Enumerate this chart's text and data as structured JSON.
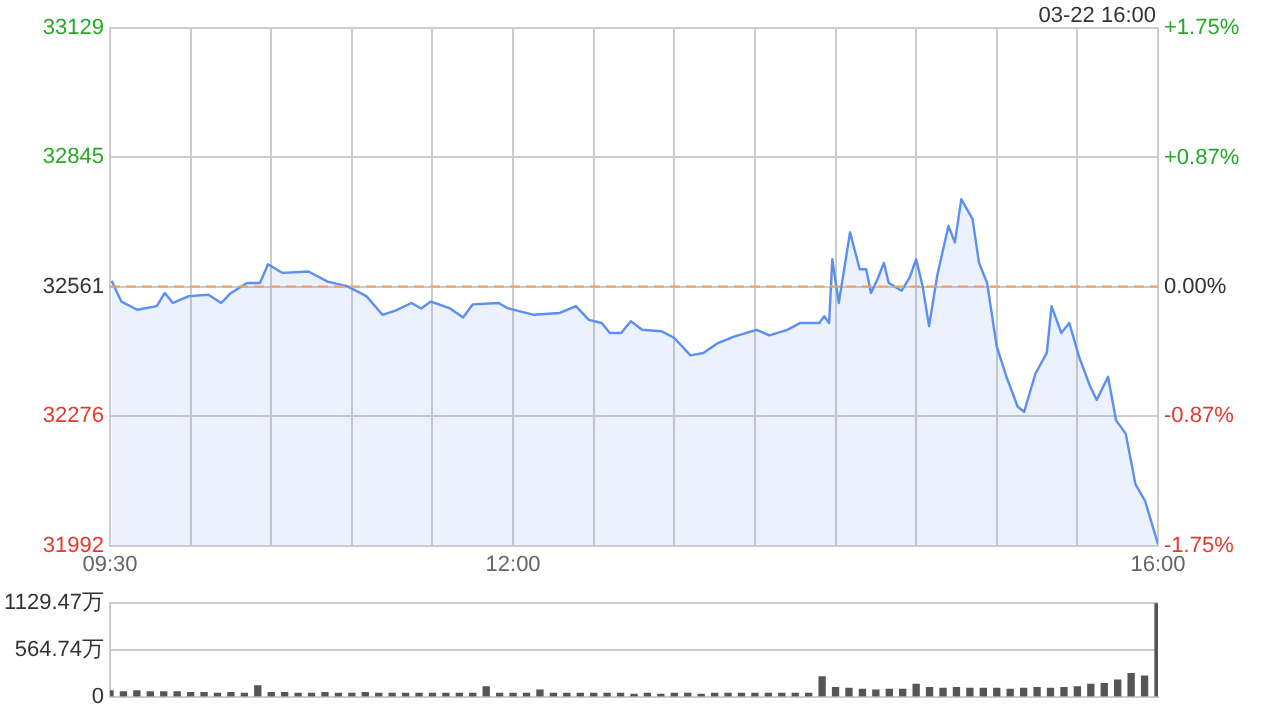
{
  "chart_data": [
    {
      "type": "area",
      "annotations": [
        "03-22 16:00"
      ],
      "series": [
        {
          "color": "#5b8ff0",
          "x": [
            9.51,
            9.57,
            9.67,
            9.79,
            9.84,
            9.89,
            9.99,
            10.11,
            10.19,
            10.25,
            10.35,
            10.43,
            10.48,
            10.57,
            10.73,
            10.85,
            10.97,
            11.09,
            11.19,
            11.27,
            11.37,
            11.43,
            11.49,
            11.61,
            11.69,
            11.75,
            11.91,
            11.97,
            12.13,
            12.29,
            12.39,
            12.47,
            12.55,
            12.6,
            12.67,
            12.73,
            12.8,
            12.92,
            13.0,
            13.1,
            13.18,
            13.27,
            13.37,
            13.51,
            13.59,
            13.7,
            13.78,
            13.9,
            13.93,
            13.96,
            13.98,
            14.02,
            14.09,
            14.15,
            14.19,
            14.22,
            14.26,
            14.3,
            14.33,
            14.41,
            14.46,
            14.5,
            14.54,
            14.58,
            14.63,
            14.7,
            14.74,
            14.78,
            14.85,
            14.89,
            14.94,
            15.0,
            15.06,
            15.13,
            15.17,
            15.24,
            15.31,
            15.34,
            15.4,
            15.45,
            15.51,
            15.58,
            15.62,
            15.69,
            15.74,
            15.8,
            15.86,
            15.92,
            16.0
          ],
          "values": [
            32574,
            32528,
            32510,
            32518,
            32547,
            32525,
            32540,
            32543,
            32525,
            32547,
            32569,
            32569,
            32610,
            32591,
            32594,
            32572,
            32562,
            32540,
            32499,
            32508,
            32525,
            32513,
            32528,
            32513,
            32493,
            32522,
            32525,
            32513,
            32499,
            32503,
            32518,
            32488,
            32481,
            32459,
            32459,
            32485,
            32466,
            32463,
            32448,
            32410,
            32415,
            32437,
            32451,
            32466,
            32454,
            32466,
            32481,
            32481,
            32496,
            32481,
            32621,
            32525,
            32680,
            32599,
            32599,
            32547,
            32577,
            32613,
            32569,
            32552,
            32581,
            32621,
            32562,
            32474,
            32584,
            32694,
            32658,
            32753,
            32709,
            32613,
            32569,
            32429,
            32363,
            32297,
            32286,
            32370,
            32415,
            32518,
            32459,
            32481,
            32407,
            32341,
            32312,
            32363,
            32267,
            32238,
            32127,
            32090,
            31995
          ]
        }
      ],
      "xlim": [
        9.5,
        16
      ],
      "xticks": [
        {
          "value": 9.5,
          "label": "09:30"
        },
        {
          "value": 10,
          "label": null
        },
        {
          "value": 10.5,
          "label": null
        },
        {
          "value": 11,
          "label": null
        },
        {
          "value": 11.5,
          "label": null
        },
        {
          "value": 12,
          "label": "12:00"
        },
        {
          "value": 12.5,
          "label": null
        },
        {
          "value": 13,
          "label": null
        },
        {
          "value": 13.5,
          "label": null
        },
        {
          "value": 14,
          "label": null
        },
        {
          "value": 14.5,
          "label": null
        },
        {
          "value": 15,
          "label": null
        },
        {
          "value": 15.5,
          "label": null
        },
        {
          "value": 16,
          "label": "16:00"
        }
      ],
      "ylim": [
        31992,
        33129
      ],
      "yticks": [
        31992,
        32276,
        32561,
        32845,
        33129
      ],
      "y2lim": [
        -1.75,
        1.75
      ],
      "y2ticks": [
        {
          "value": -1.75,
          "label": "-1.75%"
        },
        {
          "value": -0.87,
          "label": "-0.87%"
        },
        {
          "value": 0,
          "label": "0.00%"
        },
        {
          "value": 0.87,
          "label": "+0.87%"
        },
        {
          "value": 1.75,
          "label": "+1.75%"
        }
      ],
      "ref_lines": [
        {
          "axis": "y",
          "value": 32561,
          "color": "#f0a060",
          "line_style": "dashed"
        }
      ],
      "grid": true,
      "legend": false,
      "marker": "none",
      "line_style": "solid"
    },
    {
      "type": "bar",
      "color": "#555555",
      "x": [
        9.5,
        9.5833,
        9.6667,
        9.75,
        9.8333,
        9.9167,
        10,
        10.0833,
        10.1667,
        10.25,
        10.3333,
        10.4167,
        10.5,
        10.5833,
        10.6667,
        10.75,
        10.8333,
        10.9167,
        11,
        11.0833,
        11.1667,
        11.25,
        11.3333,
        11.4167,
        11.5,
        11.5833,
        11.6667,
        11.75,
        11.8333,
        11.9167,
        12,
        12.0833,
        12.1667,
        12.25,
        12.3333,
        12.4167,
        12.5,
        12.5833,
        12.6667,
        12.75,
        12.8333,
        12.9167,
        13,
        13.0833,
        13.1667,
        13.25,
        13.3333,
        13.4167,
        13.5,
        13.5833,
        13.6667,
        13.75,
        13.8333,
        13.9167,
        14,
        14.0833,
        14.1667,
        14.25,
        14.3333,
        14.4167,
        14.5,
        14.5833,
        14.6667,
        14.75,
        14.8333,
        14.9167,
        15,
        15.0833,
        15.1667,
        15.25,
        15.3333,
        15.4167,
        15.5,
        15.5833,
        15.6667,
        15.75,
        15.8333,
        15.9167,
        16
      ],
      "values": [
        70,
        60,
        70,
        60,
        60,
        60,
        50,
        50,
        40,
        50,
        40,
        130,
        50,
        50,
        40,
        40,
        50,
        40,
        40,
        50,
        40,
        40,
        40,
        40,
        40,
        40,
        40,
        40,
        120,
        40,
        40,
        40,
        80,
        40,
        40,
        40,
        40,
        40,
        40,
        30,
        40,
        30,
        40,
        40,
        30,
        40,
        40,
        40,
        40,
        40,
        40,
        40,
        40,
        240,
        110,
        100,
        90,
        80,
        90,
        90,
        150,
        110,
        100,
        110,
        100,
        100,
        100,
        90,
        100,
        110,
        100,
        110,
        120,
        150,
        160,
        200,
        280,
        250,
        1129.47
      ],
      "xlim": [
        9.5,
        16
      ],
      "ylim": [
        0,
        1129.47
      ],
      "yticks": [
        0,
        {
          "value": 564.74,
          "label": "564.74万"
        },
        {
          "value": 1129.47,
          "label": "1129.47万"
        }
      ],
      "grid": "y",
      "legend": false,
      "tick_labels": "y"
    }
  ]
}
